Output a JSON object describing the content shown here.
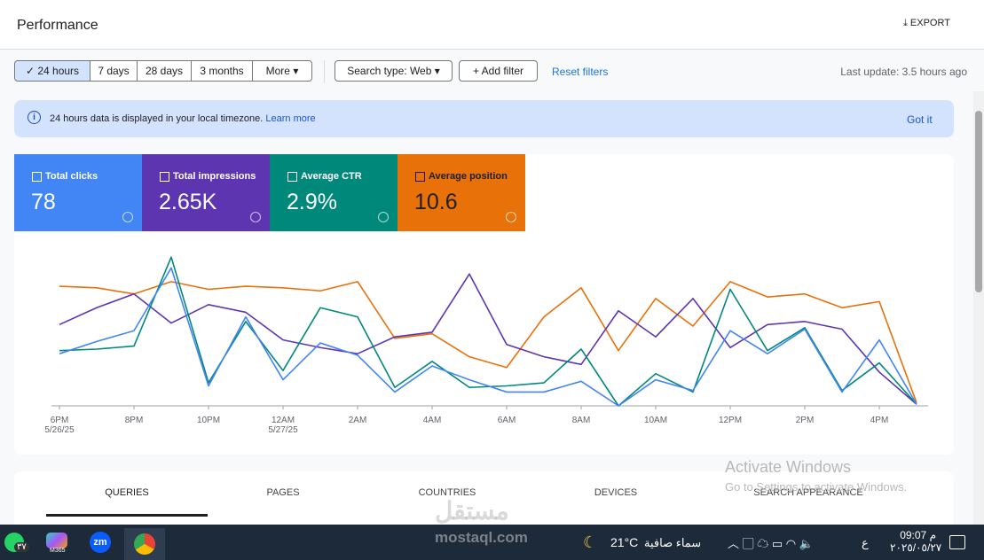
{
  "header": {
    "title": "Performance",
    "export": "EXPORT"
  },
  "filters": {
    "ranges": [
      "24 hours",
      "7 days",
      "28 days",
      "3 months",
      "More"
    ],
    "search_type": "Search type: Web",
    "add_filter": "Add filter",
    "reset": "Reset filters",
    "last_update": "Last update: 3.5 hours ago"
  },
  "banner": {
    "text": "24 hours data is displayed in your local timezone.",
    "link": "Learn more",
    "action": "Got it"
  },
  "metrics": [
    {
      "label": "Total clicks",
      "value": "78",
      "color": "#4285f4"
    },
    {
      "label": "Total impressions",
      "value": "2.65K",
      "color": "#5e35b1"
    },
    {
      "label": "Average CTR",
      "value": "2.9%",
      "color": "#00897b"
    },
    {
      "label": "Average position",
      "value": "10.6",
      "color": "#e8710a"
    }
  ],
  "chart_data": {
    "type": "line",
    "categories": [
      "6PM",
      null,
      "8PM",
      null,
      "10PM",
      null,
      "12AM",
      null,
      "2AM",
      null,
      "4AM",
      null,
      "6AM",
      null,
      "8AM",
      null,
      "10AM",
      null,
      "12PM",
      null,
      "2PM",
      null,
      "4PM",
      null
    ],
    "sublabels": [
      "5/26/25",
      null,
      null,
      null,
      null,
      null,
      "5/27/25",
      null,
      null,
      null,
      null,
      null,
      null,
      null,
      null,
      null,
      null,
      null,
      null,
      null,
      null,
      null,
      null,
      null
    ],
    "ylim": [
      0,
      100
    ],
    "series": [
      {
        "name": "Average position",
        "color": "#e8710a",
        "values": [
          78,
          77,
          73,
          81,
          76,
          78,
          77,
          75,
          81,
          44,
          47,
          32,
          25,
          58,
          77,
          36,
          70,
          52,
          81,
          71,
          73,
          64,
          68,
          2
        ]
      },
      {
        "name": "Total impressions",
        "color": "#5e35b1",
        "values": [
          53,
          64,
          73,
          54,
          66,
          61,
          43,
          38,
          34,
          45,
          48,
          86,
          40,
          32,
          27,
          62,
          45,
          70,
          38,
          53,
          55,
          50,
          22,
          1
        ]
      },
      {
        "name": "Average CTR",
        "color": "#00897b",
        "values": [
          36,
          37,
          39,
          97,
          15,
          55,
          23,
          64,
          58,
          12,
          29,
          12,
          13,
          15,
          37,
          0,
          21,
          9,
          76,
          36,
          51,
          10,
          28,
          1
        ]
      },
      {
        "name": "Total clicks",
        "color": "#4285f4",
        "values": [
          34,
          42,
          49,
          90,
          13,
          58,
          17,
          41,
          33,
          9,
          26,
          17,
          9,
          9,
          16,
          0,
          17,
          10,
          49,
          34,
          50,
          9,
          43,
          1
        ]
      }
    ]
  },
  "tabs": [
    "QUERIES",
    "PAGES",
    "COUNTRIES",
    "DEVICES",
    "SEARCH APPEARANCE"
  ],
  "watermark": {
    "title": "Activate Windows",
    "text": "Go to Settings to activate Windows.",
    "site_arabic": "مستقل",
    "site": "mostaql.com"
  },
  "taskbar": {
    "badge": "٣٧",
    "app_label": "M365",
    "weather_temp": "21°C",
    "weather_text": "سماء صافية",
    "lang": "ع",
    "time": "09:07 م",
    "date": "٢٠٢٥/٠٥/٢٧"
  }
}
